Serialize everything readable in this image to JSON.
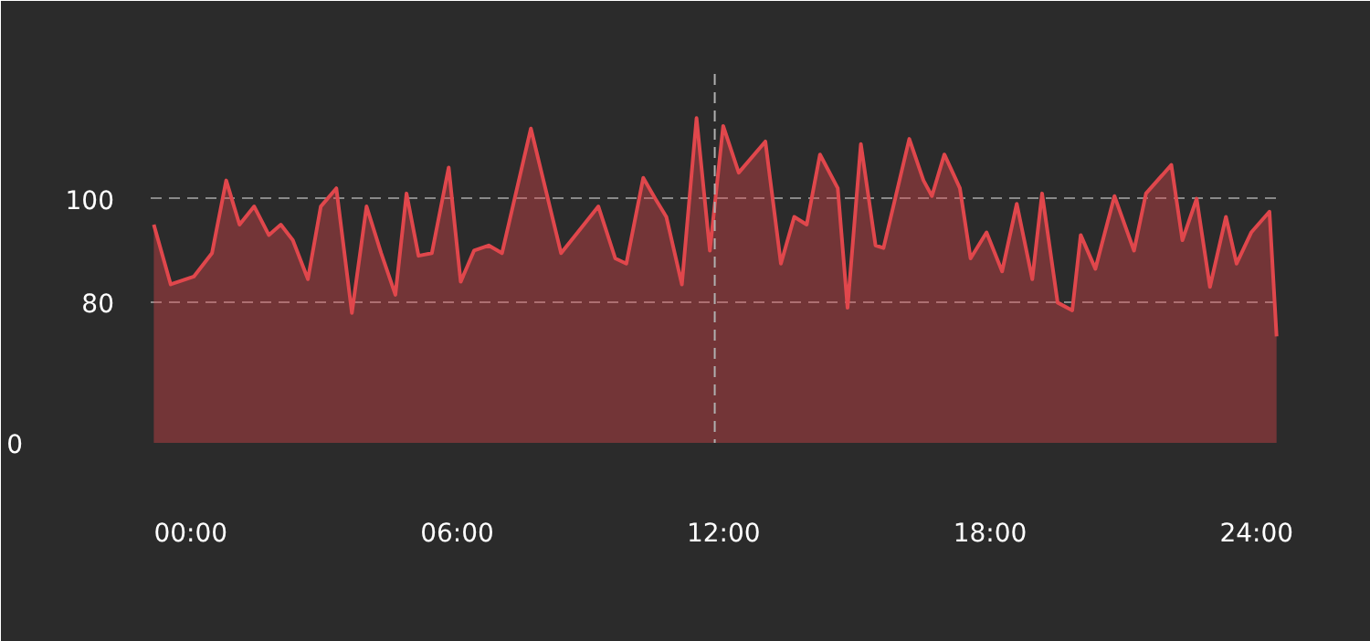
{
  "chart_data": {
    "type": "area",
    "x": [
      -0.83,
      -0.45,
      0.07,
      0.48,
      0.8,
      1.1,
      1.43,
      1.76,
      2.03,
      2.3,
      2.64,
      2.93,
      3.28,
      3.63,
      3.96,
      4.29,
      4.61,
      4.86,
      5.13,
      5.43,
      5.81,
      6.08,
      6.38,
      6.71,
      7.01,
      7.66,
      8.34,
      9.18,
      9.56,
      9.81,
      10.19,
      10.46,
      10.71,
      11.06,
      11.39,
      11.69,
      11.99,
      12.34,
      12.94,
      13.29,
      13.59,
      13.87,
      14.17,
      14.57,
      14.79,
      15.09,
      15.42,
      15.6,
      16.18,
      16.5,
      16.69,
      16.97,
      17.32,
      17.56,
      17.92,
      18.27,
      18.6,
      18.95,
      19.17,
      19.52,
      19.85,
      20.04,
      20.37,
      20.8,
      21.24,
      21.51,
      22.08,
      22.33,
      22.65,
      22.95,
      23.31,
      23.55,
      23.88,
      24.29,
      24.45
    ],
    "series": [
      {
        "color": "#e0474c",
        "values": [
          95,
          83.5,
          85,
          89.5,
          103.5,
          95,
          98.5,
          93,
          95,
          92,
          84.5,
          98.5,
          102,
          78,
          98.5,
          89.5,
          81.5,
          101,
          89,
          89.5,
          106,
          84,
          90,
          91,
          89.5,
          113.5,
          89.5,
          98.5,
          88.5,
          87.5,
          104,
          100,
          96.5,
          83.5,
          115.5,
          90,
          114,
          105,
          111,
          87.5,
          96.5,
          95,
          108.5,
          102,
          79,
          110.5,
          91,
          90.5,
          111.5,
          103.5,
          100.5,
          108.5,
          102,
          88.5,
          93.5,
          86,
          99,
          84.5,
          101,
          80,
          78.5,
          93,
          86.5,
          100.5,
          90,
          101,
          106.5,
          92,
          100,
          83,
          96.5,
          87.5,
          93.5,
          97.5,
          73.5
        ]
      }
    ],
    "xlim": [
      -0.9,
      24.6
    ],
    "ylim": [
      53,
      124
    ],
    "xticks": [
      {
        "value": 0,
        "label": "00:00"
      },
      {
        "value": 6,
        "label": "06:00"
      },
      {
        "value": 12,
        "label": "12:00"
      },
      {
        "value": 18,
        "label": "18:00"
      },
      {
        "value": 24,
        "label": "24:00"
      }
    ],
    "yticks": [
      {
        "value": 53,
        "label": null
      },
      80,
      100
    ],
    "annotations": [
      "0"
    ],
    "grid": "y",
    "ref_lines": [
      {
        "axis": "x",
        "value": 11.8,
        "color": "#b0b0b0",
        "line_style": "dashed"
      }
    ]
  }
}
